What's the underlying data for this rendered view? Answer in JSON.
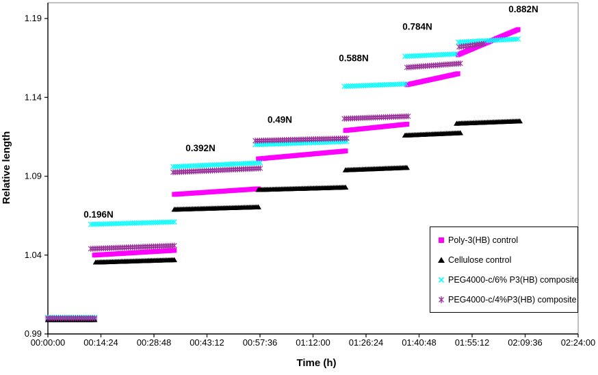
{
  "chart_data": {
    "type": "scatter",
    "title": "",
    "xlabel": "Time (h)",
    "ylabel": "Relative length",
    "grid": false,
    "legend_position": "inside bottom-right",
    "xlim_seconds": [
      0,
      8640
    ],
    "ylim": [
      0.99,
      1.2
    ],
    "x_ticks": [
      {
        "label": "00:00:00",
        "t": 0
      },
      {
        "label": "00:14:24",
        "t": 864
      },
      {
        "label": "00:28:48",
        "t": 1728
      },
      {
        "label": "00:43:12",
        "t": 2592
      },
      {
        "label": "00:57:36",
        "t": 3456
      },
      {
        "label": "01:12:00",
        "t": 4320
      },
      {
        "label": "01:26:24",
        "t": 5184
      },
      {
        "label": "01:40:48",
        "t": 6048
      },
      {
        "label": "01:55:12",
        "t": 6912
      },
      {
        "label": "02:09:36",
        "t": 7776
      },
      {
        "label": "02:24:00",
        "t": 8640
      }
    ],
    "y_ticks": [
      {
        "label": "0.99",
        "value": 0.99
      },
      {
        "label": "1.04",
        "value": 1.04
      },
      {
        "label": "1.09",
        "value": 1.09
      },
      {
        "label": "1.14",
        "value": 1.14
      },
      {
        "label": "1.19",
        "value": 1.19
      }
    ],
    "annotations": [
      {
        "text": "0.196N",
        "t": 825,
        "value": 1.066
      },
      {
        "text": "0.392N",
        "t": 2486,
        "value": 1.108
      },
      {
        "text": "0.49N",
        "t": 3779,
        "value": 1.126
      },
      {
        "text": "0.588N",
        "t": 4983,
        "value": 1.165
      },
      {
        "text": "0.784N",
        "t": 6020,
        "value": 1.185
      },
      {
        "text": "0.882N",
        "t": 7748,
        "value": 1.196
      }
    ],
    "series": [
      {
        "name": "Poly-3(HB) control",
        "marker": "square",
        "color": "#FF00FF",
        "segments": [
          {
            "t0": 0,
            "t1": 760,
            "v0": 0.9995,
            "v1": 0.9995
          },
          {
            "t0": 760,
            "t1": 2060,
            "v0": 1.04,
            "v1": 1.043
          },
          {
            "t0": 2060,
            "t1": 3430,
            "v0": 1.0785,
            "v1": 1.082
          },
          {
            "t0": 3430,
            "t1": 4850,
            "v0": 1.101,
            "v1": 1.106
          },
          {
            "t0": 4850,
            "t1": 5850,
            "v0": 1.119,
            "v1": 1.123
          },
          {
            "t0": 5850,
            "t1": 6680,
            "v0": 1.148,
            "v1": 1.155
          },
          {
            "t0": 6680,
            "t1": 7660,
            "v0": 1.167,
            "v1": 1.183
          }
        ]
      },
      {
        "name": "Cellulose control",
        "marker": "triangle",
        "color": "#000000",
        "segments": [
          {
            "t0": 0,
            "t1": 760,
            "v0": 0.999,
            "v1": 0.999
          },
          {
            "t0": 780,
            "t1": 2060,
            "v0": 1.0355,
            "v1": 1.037
          },
          {
            "t0": 2060,
            "t1": 3430,
            "v0": 1.069,
            "v1": 1.0705
          },
          {
            "t0": 3430,
            "t1": 4850,
            "v0": 1.0815,
            "v1": 1.083
          },
          {
            "t0": 4850,
            "t1": 5850,
            "v0": 1.094,
            "v1": 1.0955
          },
          {
            "t0": 5820,
            "t1": 6720,
            "v0": 1.116,
            "v1": 1.1175
          },
          {
            "t0": 6660,
            "t1": 7690,
            "v0": 1.1235,
            "v1": 1.125
          }
        ]
      },
      {
        "name": "PEG4000-c/6% P3(HB) composite",
        "marker": "xmark",
        "color": "#00FFFF",
        "segments": [
          {
            "t0": 0,
            "t1": 760,
            "v0": 1.0005,
            "v1": 1.0005
          },
          {
            "t0": 700,
            "t1": 2060,
            "v0": 1.0595,
            "v1": 1.061
          },
          {
            "t0": 2040,
            "t1": 3460,
            "v0": 1.096,
            "v1": 1.0985
          },
          {
            "t0": 3380,
            "t1": 4870,
            "v0": 1.11,
            "v1": 1.112
          },
          {
            "t0": 4830,
            "t1": 5830,
            "v0": 1.147,
            "v1": 1.1485
          },
          {
            "t0": 5820,
            "t1": 6650,
            "v0": 1.166,
            "v1": 1.1675
          },
          {
            "t0": 6690,
            "t1": 7660,
            "v0": 1.175,
            "v1": 1.177
          }
        ]
      },
      {
        "name": "PEG4000-c/4%P3(HB) composite",
        "marker": "star",
        "color": "#993399",
        "segments": [
          {
            "t0": 0,
            "t1": 760,
            "v0": 1.0,
            "v1": 1.0
          },
          {
            "t0": 700,
            "t1": 2060,
            "v0": 1.044,
            "v1": 1.046
          },
          {
            "t0": 2040,
            "t1": 3460,
            "v0": 1.0925,
            "v1": 1.095
          },
          {
            "t0": 3380,
            "t1": 4870,
            "v0": 1.1125,
            "v1": 1.114
          },
          {
            "t0": 4830,
            "t1": 5870,
            "v0": 1.1265,
            "v1": 1.128
          },
          {
            "t0": 5850,
            "t1": 6720,
            "v0": 1.159,
            "v1": 1.1615
          },
          {
            "t0": 6700,
            "t1": 7100,
            "v0": 1.172,
            "v1": 1.174
          }
        ]
      }
    ],
    "axis_color": "#000000",
    "plot_border_color": "#808080"
  }
}
